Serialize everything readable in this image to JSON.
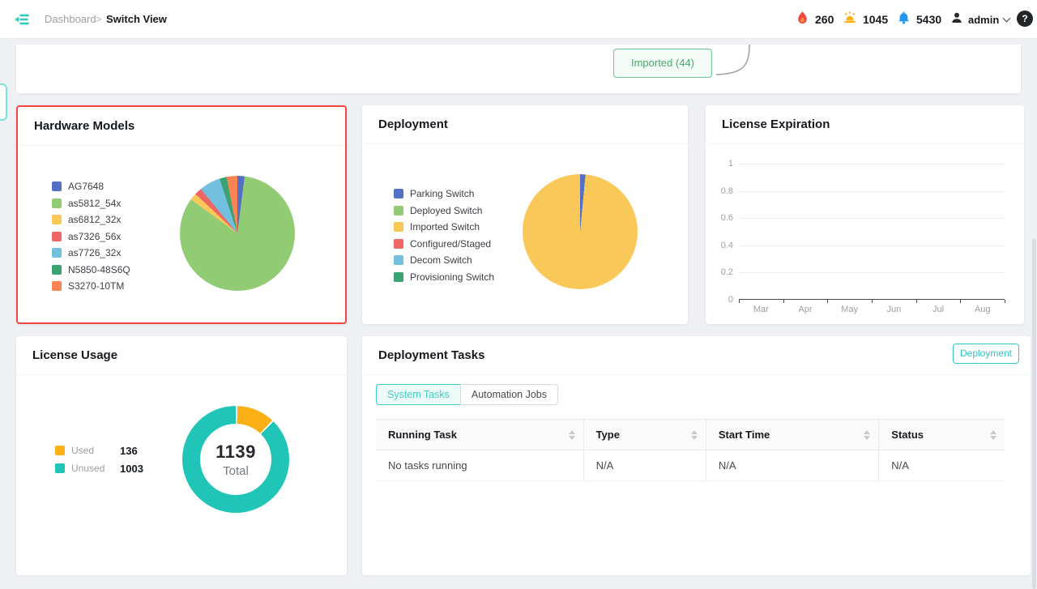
{
  "topbar": {
    "breadcrumb": {
      "parent": "Dashboard",
      "separator": ">",
      "current": "Switch View"
    },
    "counters": [
      {
        "icon": "flame-icon",
        "color": "#f0483e",
        "value": "260"
      },
      {
        "icon": "alarm-icon",
        "color": "#fbb316",
        "value": "1045"
      },
      {
        "icon": "bell-icon",
        "color": "#2196f3",
        "value": "5430"
      }
    ],
    "user": {
      "icon": "user-icon",
      "label": "admin"
    },
    "help_label": "?"
  },
  "workflow_strip": {
    "imported_button": "Imported (44)"
  },
  "cards": {
    "hardware_models": {
      "title": "Hardware Models",
      "highlight_border": "#f5453d"
    },
    "deployment": {
      "title": "Deployment"
    },
    "license_expiration": {
      "title": "License Expiration",
      "y_ticks": [
        "1",
        "0.8",
        "0.6",
        "0.4",
        "0.2",
        "0"
      ],
      "x_ticks": [
        "Mar",
        "Apr",
        "May",
        "Jun",
        "Jul",
        "Aug"
      ]
    },
    "license_usage": {
      "title": "License Usage",
      "legend": [
        {
          "label": "Used",
          "value": "136",
          "color": "#fbb016"
        },
        {
          "label": "Unused",
          "value": "1003",
          "color": "#20c5b7"
        }
      ],
      "center_value": "1139",
      "center_label": "Total"
    },
    "deployment_tasks": {
      "title": "Deployment Tasks",
      "action_button": "Deployment",
      "tabs": [
        {
          "label": "System Tasks",
          "active": true
        },
        {
          "label": "Automation Jobs",
          "active": false
        }
      ],
      "table": {
        "columns": [
          "Running Task",
          "Type",
          "Start Time",
          "Status"
        ],
        "col_widths_pct": [
          33,
          19.5,
          27.5,
          20
        ],
        "rows": [
          [
            "No tasks running",
            "N/A",
            "N/A",
            "N/A"
          ]
        ]
      }
    }
  },
  "chart_data": [
    {
      "type": "pie",
      "title": "Hardware Models",
      "labels": [
        "AG7648",
        "as5812_54x",
        "as6812_32x",
        "as7326_56x",
        "as7726_32x",
        "N5850-48S6Q",
        "S3270-10TM"
      ],
      "values": [
        2,
        83,
        2,
        2,
        6,
        2,
        3
      ],
      "value_unit": "estimated_percent",
      "colors": [
        "#5470c6",
        "#91cc75",
        "#fac858",
        "#ee6666",
        "#73c0de",
        "#3ba272",
        "#fc8452"
      ],
      "legend_position": "left"
    },
    {
      "type": "pie",
      "title": "Deployment",
      "labels": [
        "Parking Switch",
        "Deployed Switch",
        "Imported Switch",
        "Configured/Staged",
        "Decom Switch",
        "Provisioning Switch"
      ],
      "values": [
        1.5,
        0,
        98.5,
        0,
        0,
        0
      ],
      "value_unit": "estimated_percent",
      "colors": [
        "#5470c6",
        "#91cc75",
        "#fac858",
        "#ee6666",
        "#73c0de",
        "#3ba272"
      ],
      "legend_position": "left"
    },
    {
      "type": "line",
      "title": "License Expiration",
      "x": [
        "Mar",
        "Apr",
        "May",
        "Jun",
        "Jul",
        "Aug"
      ],
      "series": [],
      "ylim": [
        0,
        1
      ],
      "y_ticks": [
        0,
        0.2,
        0.4,
        0.6,
        0.8,
        1
      ],
      "grid": true,
      "note": "empty chart - no data plotted"
    },
    {
      "type": "donut",
      "title": "License Usage",
      "labels": [
        "Used",
        "Unused"
      ],
      "values": [
        136,
        1003
      ],
      "total": 1139,
      "center_label": "Total",
      "colors": [
        "#fbb016",
        "#20c5b7"
      ],
      "legend_position": "left"
    }
  ]
}
